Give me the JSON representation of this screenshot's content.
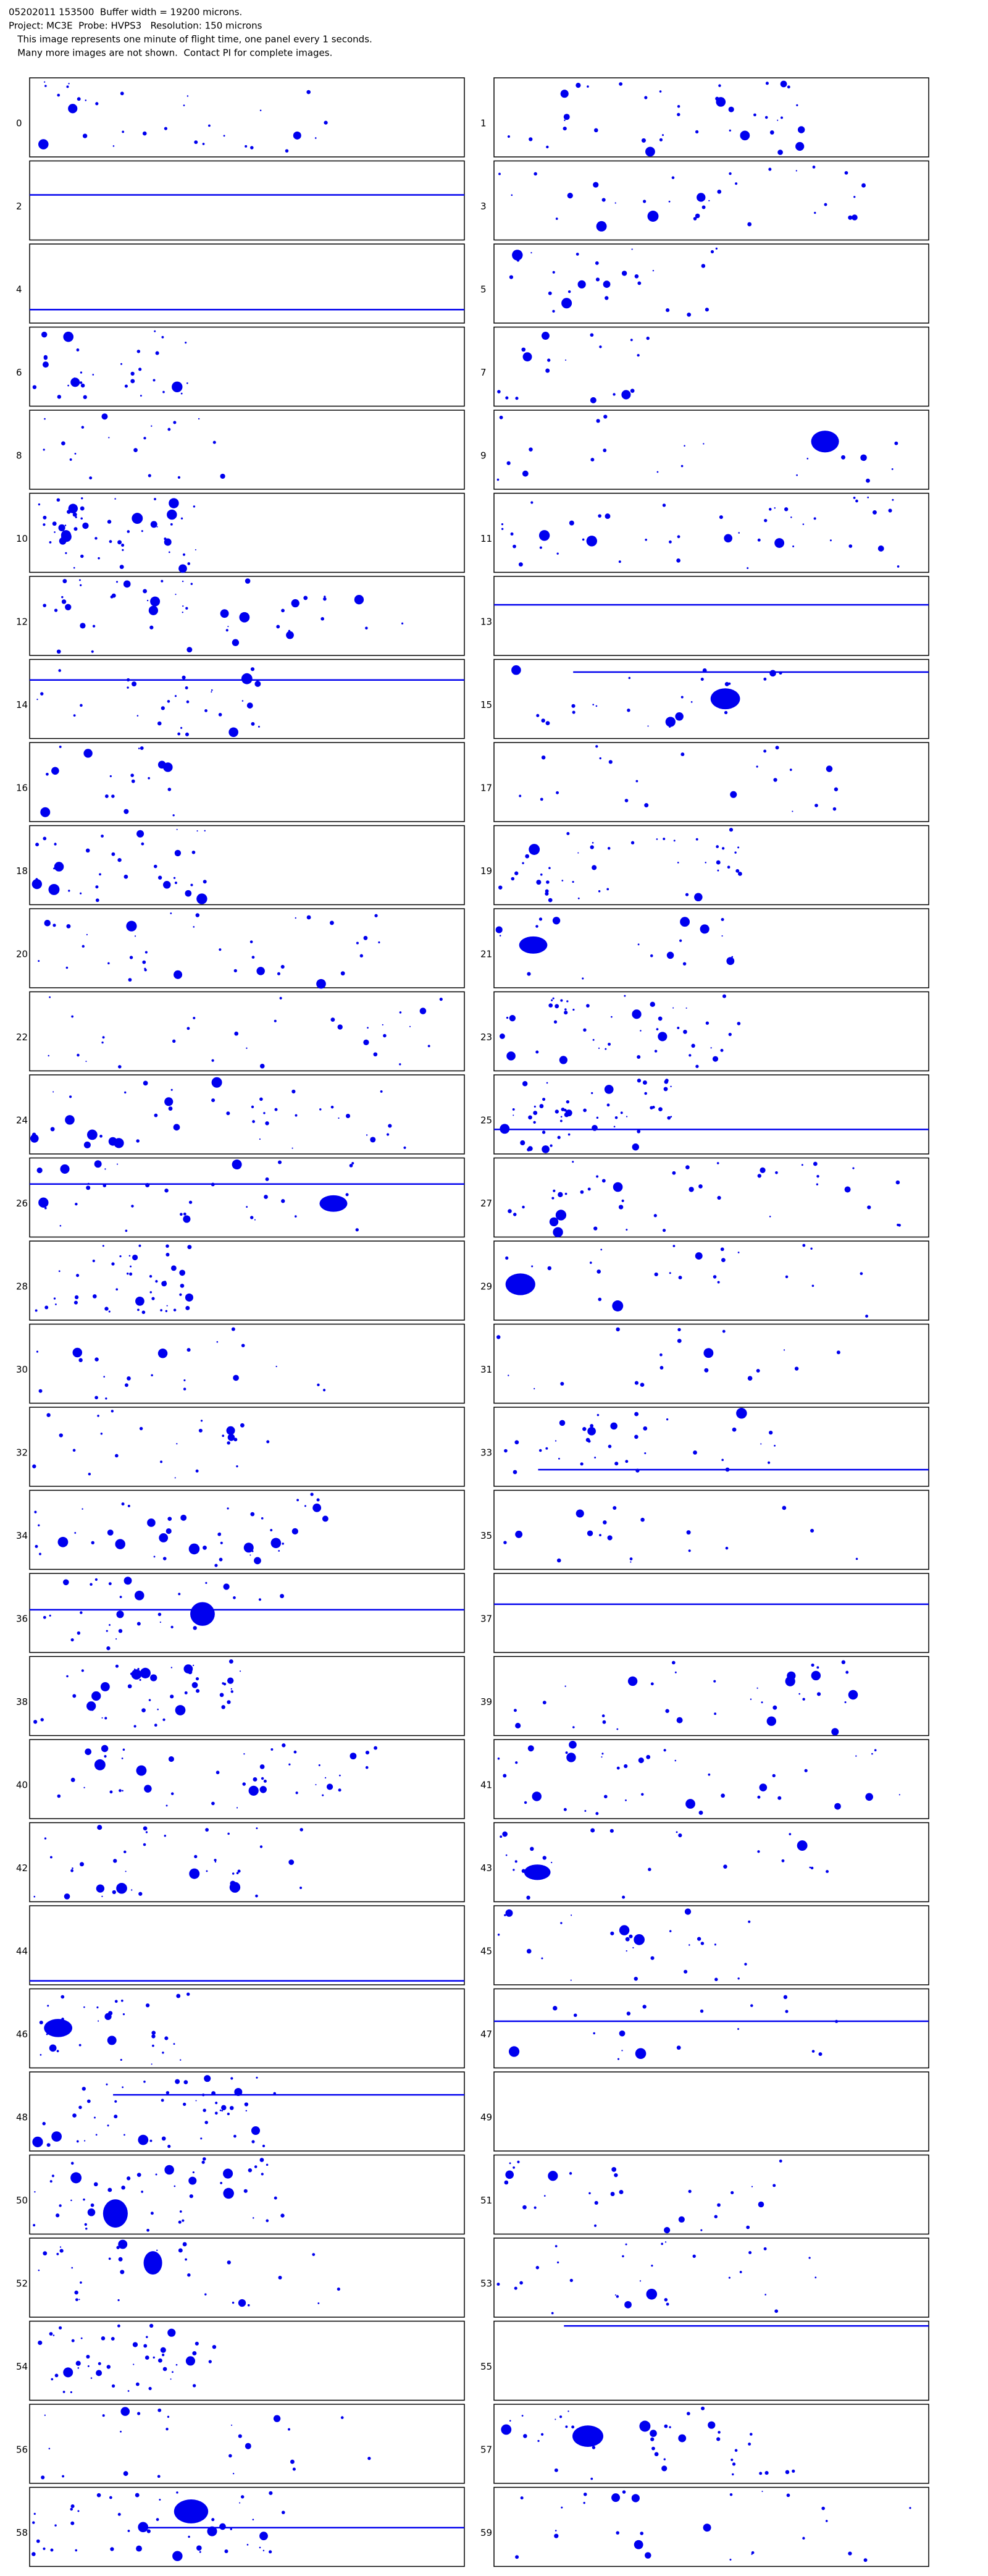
{
  "header": {
    "lines": [
      "05202011 153500  Buffer width = 19200 microns.",
      "Project: MC3E  Probe: HVPS3   Resolution: 150 microns",
      "   This image represents one minute of flight time, one panel every 1 seconds.",
      "   Many more images are not shown.  Contact PI for complete images."
    ]
  },
  "panels": [
    {
      "label": "0"
    },
    {
      "label": "1"
    },
    {
      "label": "2"
    },
    {
      "label": "3"
    },
    {
      "label": "4"
    },
    {
      "label": "5"
    },
    {
      "label": "6"
    },
    {
      "label": "7"
    },
    {
      "label": "8"
    },
    {
      "label": "9"
    },
    {
      "label": "10"
    },
    {
      "label": "11"
    },
    {
      "label": "12"
    },
    {
      "label": "13"
    },
    {
      "label": "14"
    },
    {
      "label": "15"
    },
    {
      "label": "16"
    },
    {
      "label": "17"
    },
    {
      "label": "18"
    },
    {
      "label": "19"
    },
    {
      "label": "20"
    },
    {
      "label": "21"
    },
    {
      "label": "22"
    },
    {
      "label": "23"
    },
    {
      "label": "24"
    },
    {
      "label": "25"
    },
    {
      "label": "26"
    },
    {
      "label": "27"
    },
    {
      "label": "28"
    },
    {
      "label": "29"
    },
    {
      "label": "30"
    },
    {
      "label": "31"
    },
    {
      "label": "32"
    },
    {
      "label": "33"
    },
    {
      "label": "34"
    },
    {
      "label": "35"
    },
    {
      "label": "36"
    },
    {
      "label": "37"
    },
    {
      "label": "38"
    },
    {
      "label": "39"
    },
    {
      "label": "40"
    },
    {
      "label": "41"
    },
    {
      "label": "42"
    },
    {
      "label": "43"
    },
    {
      "label": "44"
    },
    {
      "label": "45"
    },
    {
      "label": "46"
    },
    {
      "label": "47"
    },
    {
      "label": "48"
    },
    {
      "label": "49"
    },
    {
      "label": "50"
    },
    {
      "label": "51"
    },
    {
      "label": "52"
    },
    {
      "label": "53"
    },
    {
      "label": "54"
    },
    {
      "label": "55"
    },
    {
      "label": "56"
    },
    {
      "label": "57"
    },
    {
      "label": "58"
    },
    {
      "label": "59"
    }
  ]
}
